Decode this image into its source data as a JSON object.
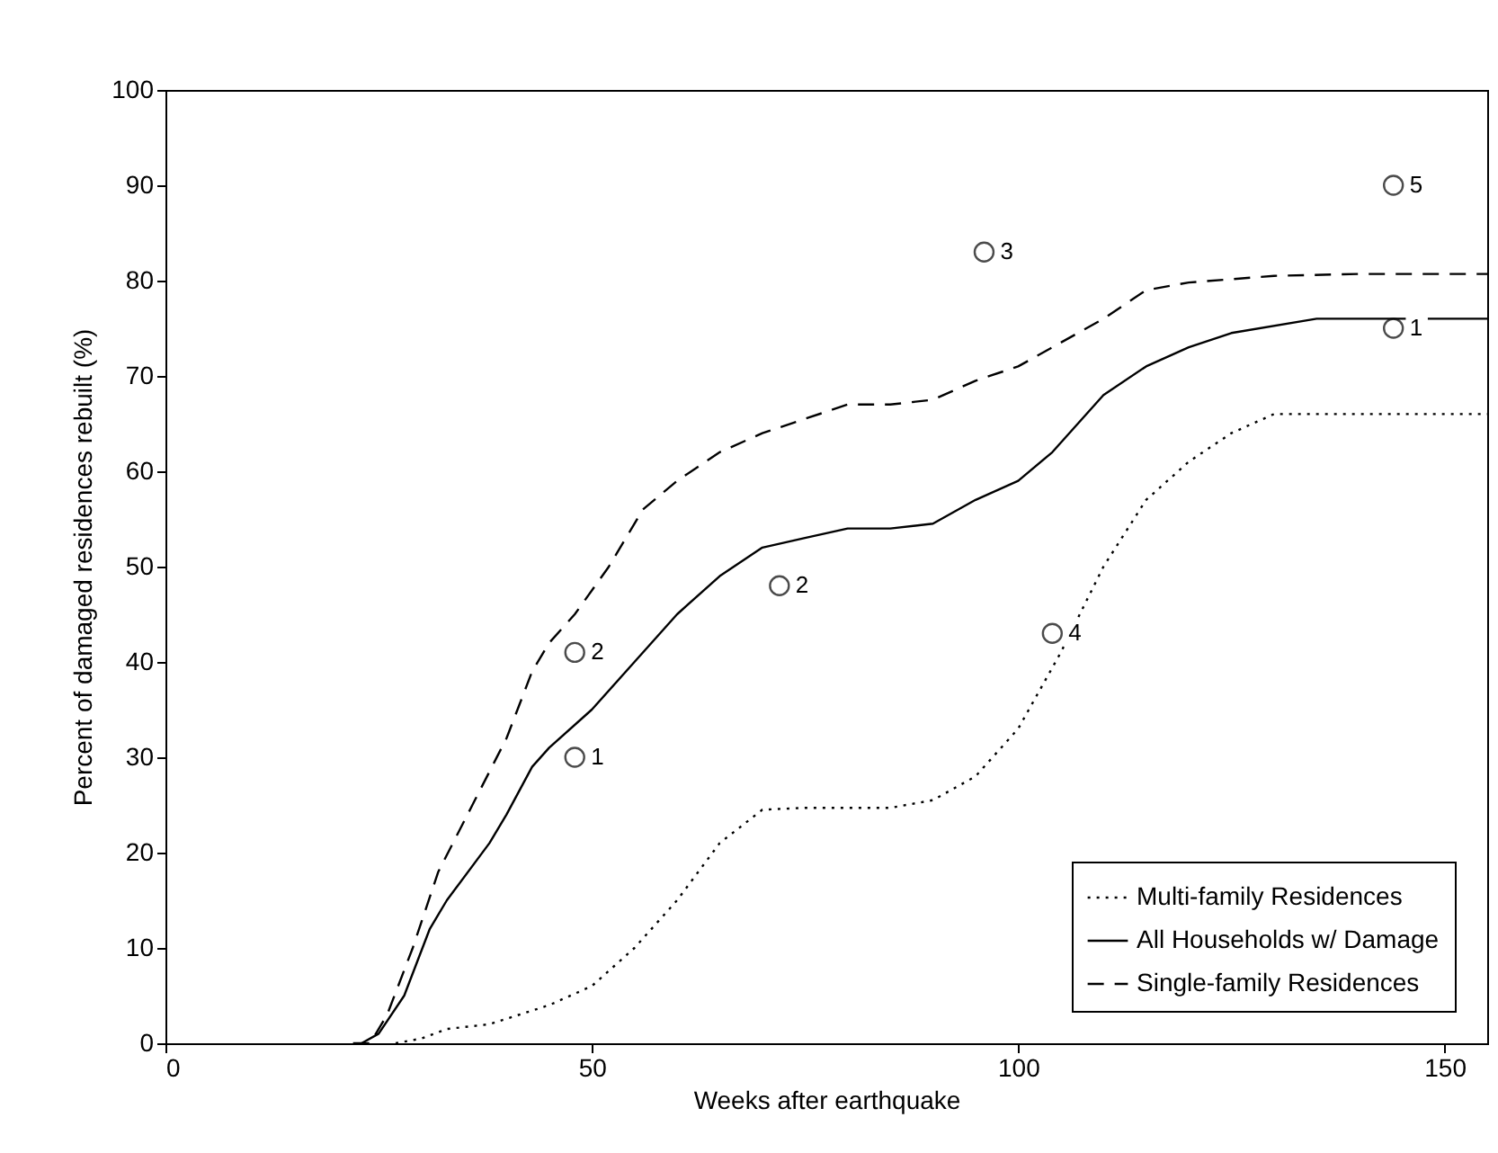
{
  "chart_data": {
    "type": "line",
    "xlabel": "Weeks after earthquake",
    "ylabel": "Percent of damaged residences rebuilt (%)",
    "xlim": [
      0,
      155
    ],
    "ylim": [
      0,
      100
    ],
    "xticks": [
      0,
      50,
      100,
      150
    ],
    "yticks": [
      0,
      10,
      20,
      30,
      40,
      50,
      60,
      70,
      80,
      90,
      100
    ],
    "grid": false,
    "legend": "bottom right",
    "series": [
      {
        "name": "Multi-family Residences",
        "type": "line",
        "line_style": "dotted",
        "color": "#000000",
        "x": [
          27,
          30,
          33,
          38,
          45,
          50,
          55,
          60,
          65,
          70,
          75,
          85,
          90,
          95,
          100,
          105,
          110,
          115,
          120,
          125,
          130,
          135,
          155
        ],
        "values": [
          0,
          0.5,
          1.5,
          2,
          4,
          6,
          10,
          15,
          21,
          24.5,
          24.7,
          24.7,
          25.5,
          28,
          33,
          41,
          50,
          57,
          61,
          64,
          66,
          66,
          66
        ]
      },
      {
        "name": "All Households w/ Damage",
        "type": "line",
        "line_style": "solid",
        "color": "#000000",
        "x": [
          23,
          25,
          28,
          31,
          33,
          38,
          40,
          43,
          45,
          50,
          55,
          60,
          65,
          70,
          75,
          80,
          85,
          90,
          95,
          100,
          104,
          110,
          115,
          120,
          125,
          135,
          140,
          155
        ],
        "values": [
          0,
          1,
          5,
          12,
          15,
          21,
          24,
          29,
          31,
          35,
          40,
          45,
          49,
          52,
          53,
          54,
          54,
          54.5,
          57,
          59,
          62,
          68,
          71,
          73,
          74.5,
          76,
          76,
          76
        ]
      },
      {
        "name": "Single-family Residences",
        "type": "line",
        "line_style": "dashed",
        "color": "#000000",
        "x": [
          22,
          24,
          26,
          29,
          32,
          36,
          40,
          43,
          45,
          48,
          52,
          56,
          60,
          65,
          70,
          75,
          80,
          85,
          90,
          95,
          100,
          105,
          110,
          115,
          120,
          130,
          140,
          155
        ],
        "values": [
          0,
          0,
          3,
          10,
          18,
          25,
          32,
          39,
          42,
          45,
          50,
          56,
          59,
          62,
          64,
          65.5,
          67,
          67,
          67.5,
          69.5,
          71,
          73.5,
          76,
          79,
          79.8,
          80.5,
          80.7,
          80.7
        ]
      },
      {
        "type": "scatter",
        "marker": "circle",
        "color": "#000000",
        "x": [
          48,
          48,
          72,
          96,
          104,
          144,
          144
        ],
        "values": [
          30,
          41,
          48,
          83,
          43,
          90,
          75
        ]
      }
    ],
    "annotations": [
      {
        "text": "1",
        "x": 48,
        "y": 30
      },
      {
        "text": "2",
        "x": 48,
        "y": 41
      },
      {
        "text": "2",
        "x": 72,
        "y": 48
      },
      {
        "text": "3",
        "x": 96,
        "y": 83
      },
      {
        "text": "4",
        "x": 104,
        "y": 43
      },
      {
        "text": "5",
        "x": 144,
        "y": 90
      },
      {
        "text": "1",
        "x": 144,
        "y": 75
      }
    ]
  }
}
